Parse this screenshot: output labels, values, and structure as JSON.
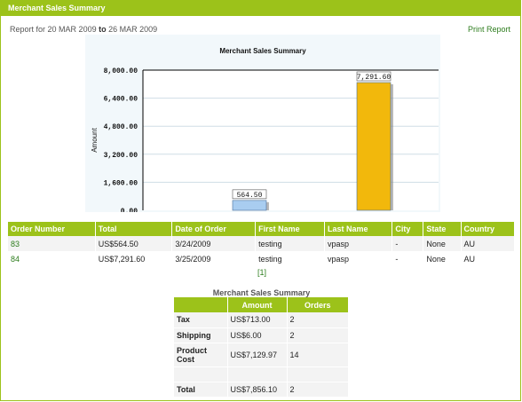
{
  "panel": {
    "title": "Merchant Sales Summary"
  },
  "report": {
    "prefix": "Report for",
    "from": "20 MAR 2009",
    "to_word": "to",
    "to": "26 MAR 2009",
    "print_label": "Print Report"
  },
  "chart_data": {
    "type": "bar",
    "title": "Merchant Sales Summary",
    "ylabel": "Amount",
    "ylim": [
      0,
      8000
    ],
    "yticks": [
      "8,000.00",
      "6,400.00",
      "4,800.00",
      "3,200.00",
      "1,600.00",
      "0.00"
    ],
    "ytick_values": [
      8000,
      6400,
      4800,
      3200,
      1600,
      0
    ],
    "values": [
      564.5,
      7291.6
    ],
    "value_labels": [
      "564.50",
      "7,291.60"
    ],
    "colors": [
      "#a9cdf0",
      "#f2b80c"
    ]
  },
  "orders": {
    "headers": [
      "Order Number",
      "Total",
      "Date of Order",
      "First Name",
      "Last Name",
      "City",
      "State",
      "Country"
    ],
    "rows": [
      [
        "83",
        "US$564.50",
        "3/24/2009",
        "testing",
        "vpasp",
        "-",
        "None",
        "AU"
      ],
      [
        "84",
        "US$7,291.60",
        "3/25/2009",
        "testing",
        "vpasp",
        "-",
        "None",
        "AU"
      ]
    ],
    "pager": "[1]"
  },
  "summary": {
    "title": "Merchant Sales Summary",
    "headers": [
      "",
      "Amount",
      "Orders"
    ],
    "rows": [
      {
        "label": "Tax",
        "amount": "US$713.00",
        "orders": "2"
      },
      {
        "label": "Shipping",
        "amount": "US$6.00",
        "orders": "2"
      },
      {
        "label": "Product Cost",
        "amount": "US$7,129.97",
        "orders": "14"
      },
      {
        "label": "",
        "amount": "",
        "orders": ""
      },
      {
        "label": "Total",
        "amount": "US$7,856.10",
        "orders": "2"
      }
    ]
  }
}
